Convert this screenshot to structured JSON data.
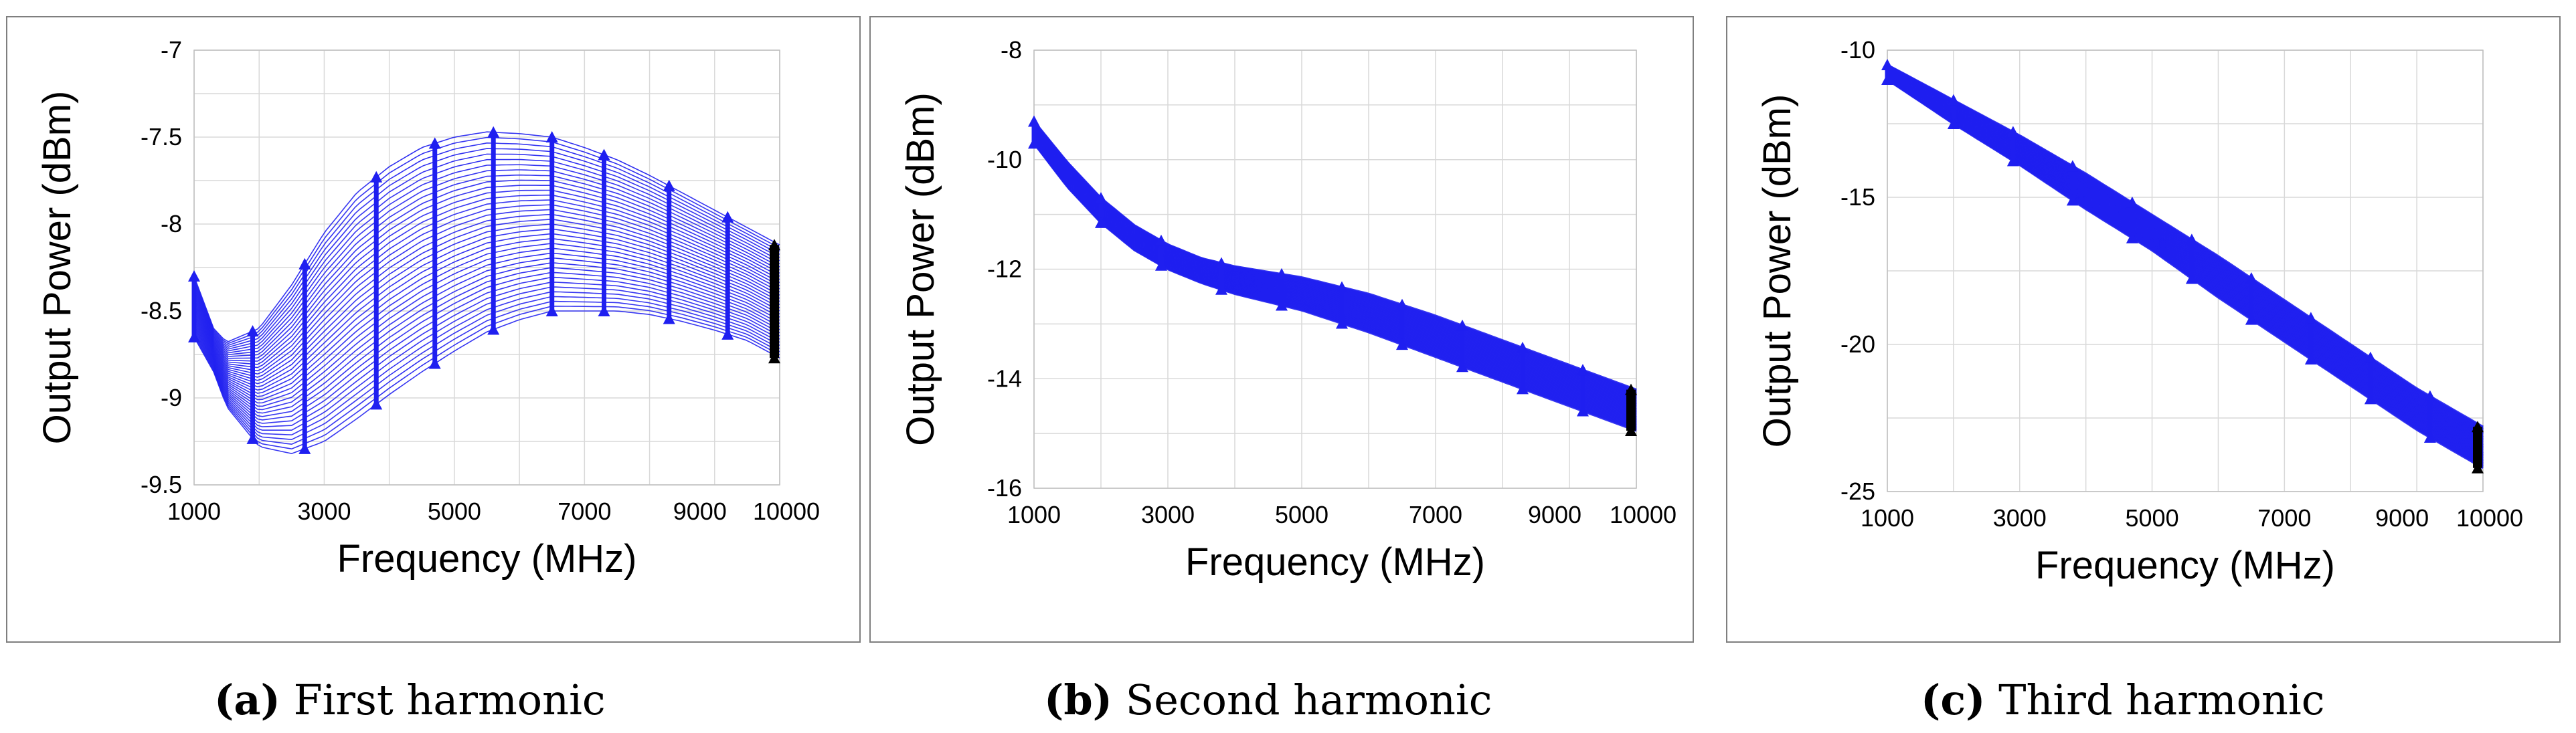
{
  "colors": {
    "series": "#1f1ff0",
    "marker": "#000000",
    "grid": "#d9d9d9",
    "frame": "#7f7f7f"
  },
  "chart_data": [
    {
      "type": "line",
      "caption_label": "(a)",
      "caption_text": "First harmonic",
      "xlabel": "Frequency (MHz)",
      "ylabel": "Output Power (dBm)",
      "xlim": [
        1000,
        10000
      ],
      "ylim": [
        -9.5,
        -7
      ],
      "xticks": [
        1000,
        3000,
        5000,
        7000,
        9000,
        10000
      ],
      "yticks": [
        -7,
        -7.5,
        -8,
        -8.5,
        -9,
        -9.5
      ],
      "grid": true,
      "envelope": {
        "x": [
          1000,
          1300,
          1500,
          2000,
          2500,
          3000,
          3500,
          4000,
          4500,
          5000,
          5500,
          6000,
          6500,
          7000,
          7500,
          8000,
          8500,
          9000,
          9500,
          10000
        ],
        "upper": [
          -8.3,
          -8.6,
          -8.68,
          -8.6,
          -8.35,
          -8.05,
          -7.82,
          -7.67,
          -7.56,
          -7.5,
          -7.47,
          -7.48,
          -7.5,
          -7.56,
          -7.63,
          -7.72,
          -7.82,
          -7.92,
          -8.02,
          -8.12
        ],
        "lower": [
          -8.65,
          -8.85,
          -9.05,
          -9.28,
          -9.32,
          -9.25,
          -9.12,
          -8.98,
          -8.85,
          -8.73,
          -8.62,
          -8.55,
          -8.5,
          -8.5,
          -8.5,
          -8.52,
          -8.56,
          -8.61,
          -8.67,
          -8.77
        ]
      },
      "marker_x": [
        1000,
        1900,
        2700,
        3800,
        4700,
        5600,
        6500,
        7300,
        8300,
        9200,
        10000
      ]
    },
    {
      "type": "line",
      "caption_label": "(b)",
      "caption_text": "Second harmonic",
      "xlabel": "Frequency (MHz)",
      "ylabel": "Output Power (dBm)",
      "xlim": [
        1000,
        10000
      ],
      "ylim": [
        -16,
        -8
      ],
      "xticks": [
        1000,
        3000,
        5000,
        7000,
        9000,
        10000
      ],
      "yticks": [
        -8,
        -10,
        -12,
        -14,
        -16
      ],
      "grid": true,
      "envelope": {
        "x": [
          1000,
          1500,
          2000,
          2500,
          3000,
          3500,
          4000,
          5000,
          6000,
          7000,
          8000,
          9000,
          10000
        ],
        "upper": [
          -9.3,
          -10.05,
          -10.7,
          -11.2,
          -11.55,
          -11.8,
          -11.95,
          -12.15,
          -12.45,
          -12.85,
          -13.3,
          -13.75,
          -14.2
        ],
        "lower": [
          -9.7,
          -10.5,
          -11.15,
          -11.65,
          -12.0,
          -12.25,
          -12.45,
          -12.75,
          -13.15,
          -13.6,
          -14.05,
          -14.5,
          -14.95
        ]
      },
      "marker_x": [
        1000,
        2000,
        2900,
        3800,
        4700,
        5600,
        6500,
        7400,
        8300,
        9200,
        10000
      ]
    },
    {
      "type": "line",
      "caption_label": "(c)",
      "caption_text": "Third harmonic",
      "xlabel": "Frequency (MHz)",
      "ylabel": "Output Power (dBm)",
      "xlim": [
        1000,
        10000
      ],
      "ylim": [
        -25,
        -10
      ],
      "xticks": [
        1000,
        3000,
        5000,
        7000,
        9000,
        10000
      ],
      "yticks": [
        -10,
        -15,
        -20,
        -25
      ],
      "grid": true,
      "envelope": {
        "x": [
          1000,
          2000,
          3000,
          4000,
          5000,
          6000,
          7000,
          8000,
          9000,
          10000
        ],
        "upper": [
          -10.5,
          -11.7,
          -12.9,
          -14.2,
          -15.6,
          -17.0,
          -18.5,
          -20.0,
          -21.5,
          -22.8
        ],
        "lower": [
          -11.0,
          -12.5,
          -13.9,
          -15.4,
          -16.8,
          -18.4,
          -19.9,
          -21.4,
          -22.9,
          -24.2
        ]
      },
      "marker_x": [
        1000,
        2000,
        2900,
        3800,
        4700,
        5600,
        6500,
        7400,
        8300,
        9200,
        10000
      ]
    }
  ]
}
